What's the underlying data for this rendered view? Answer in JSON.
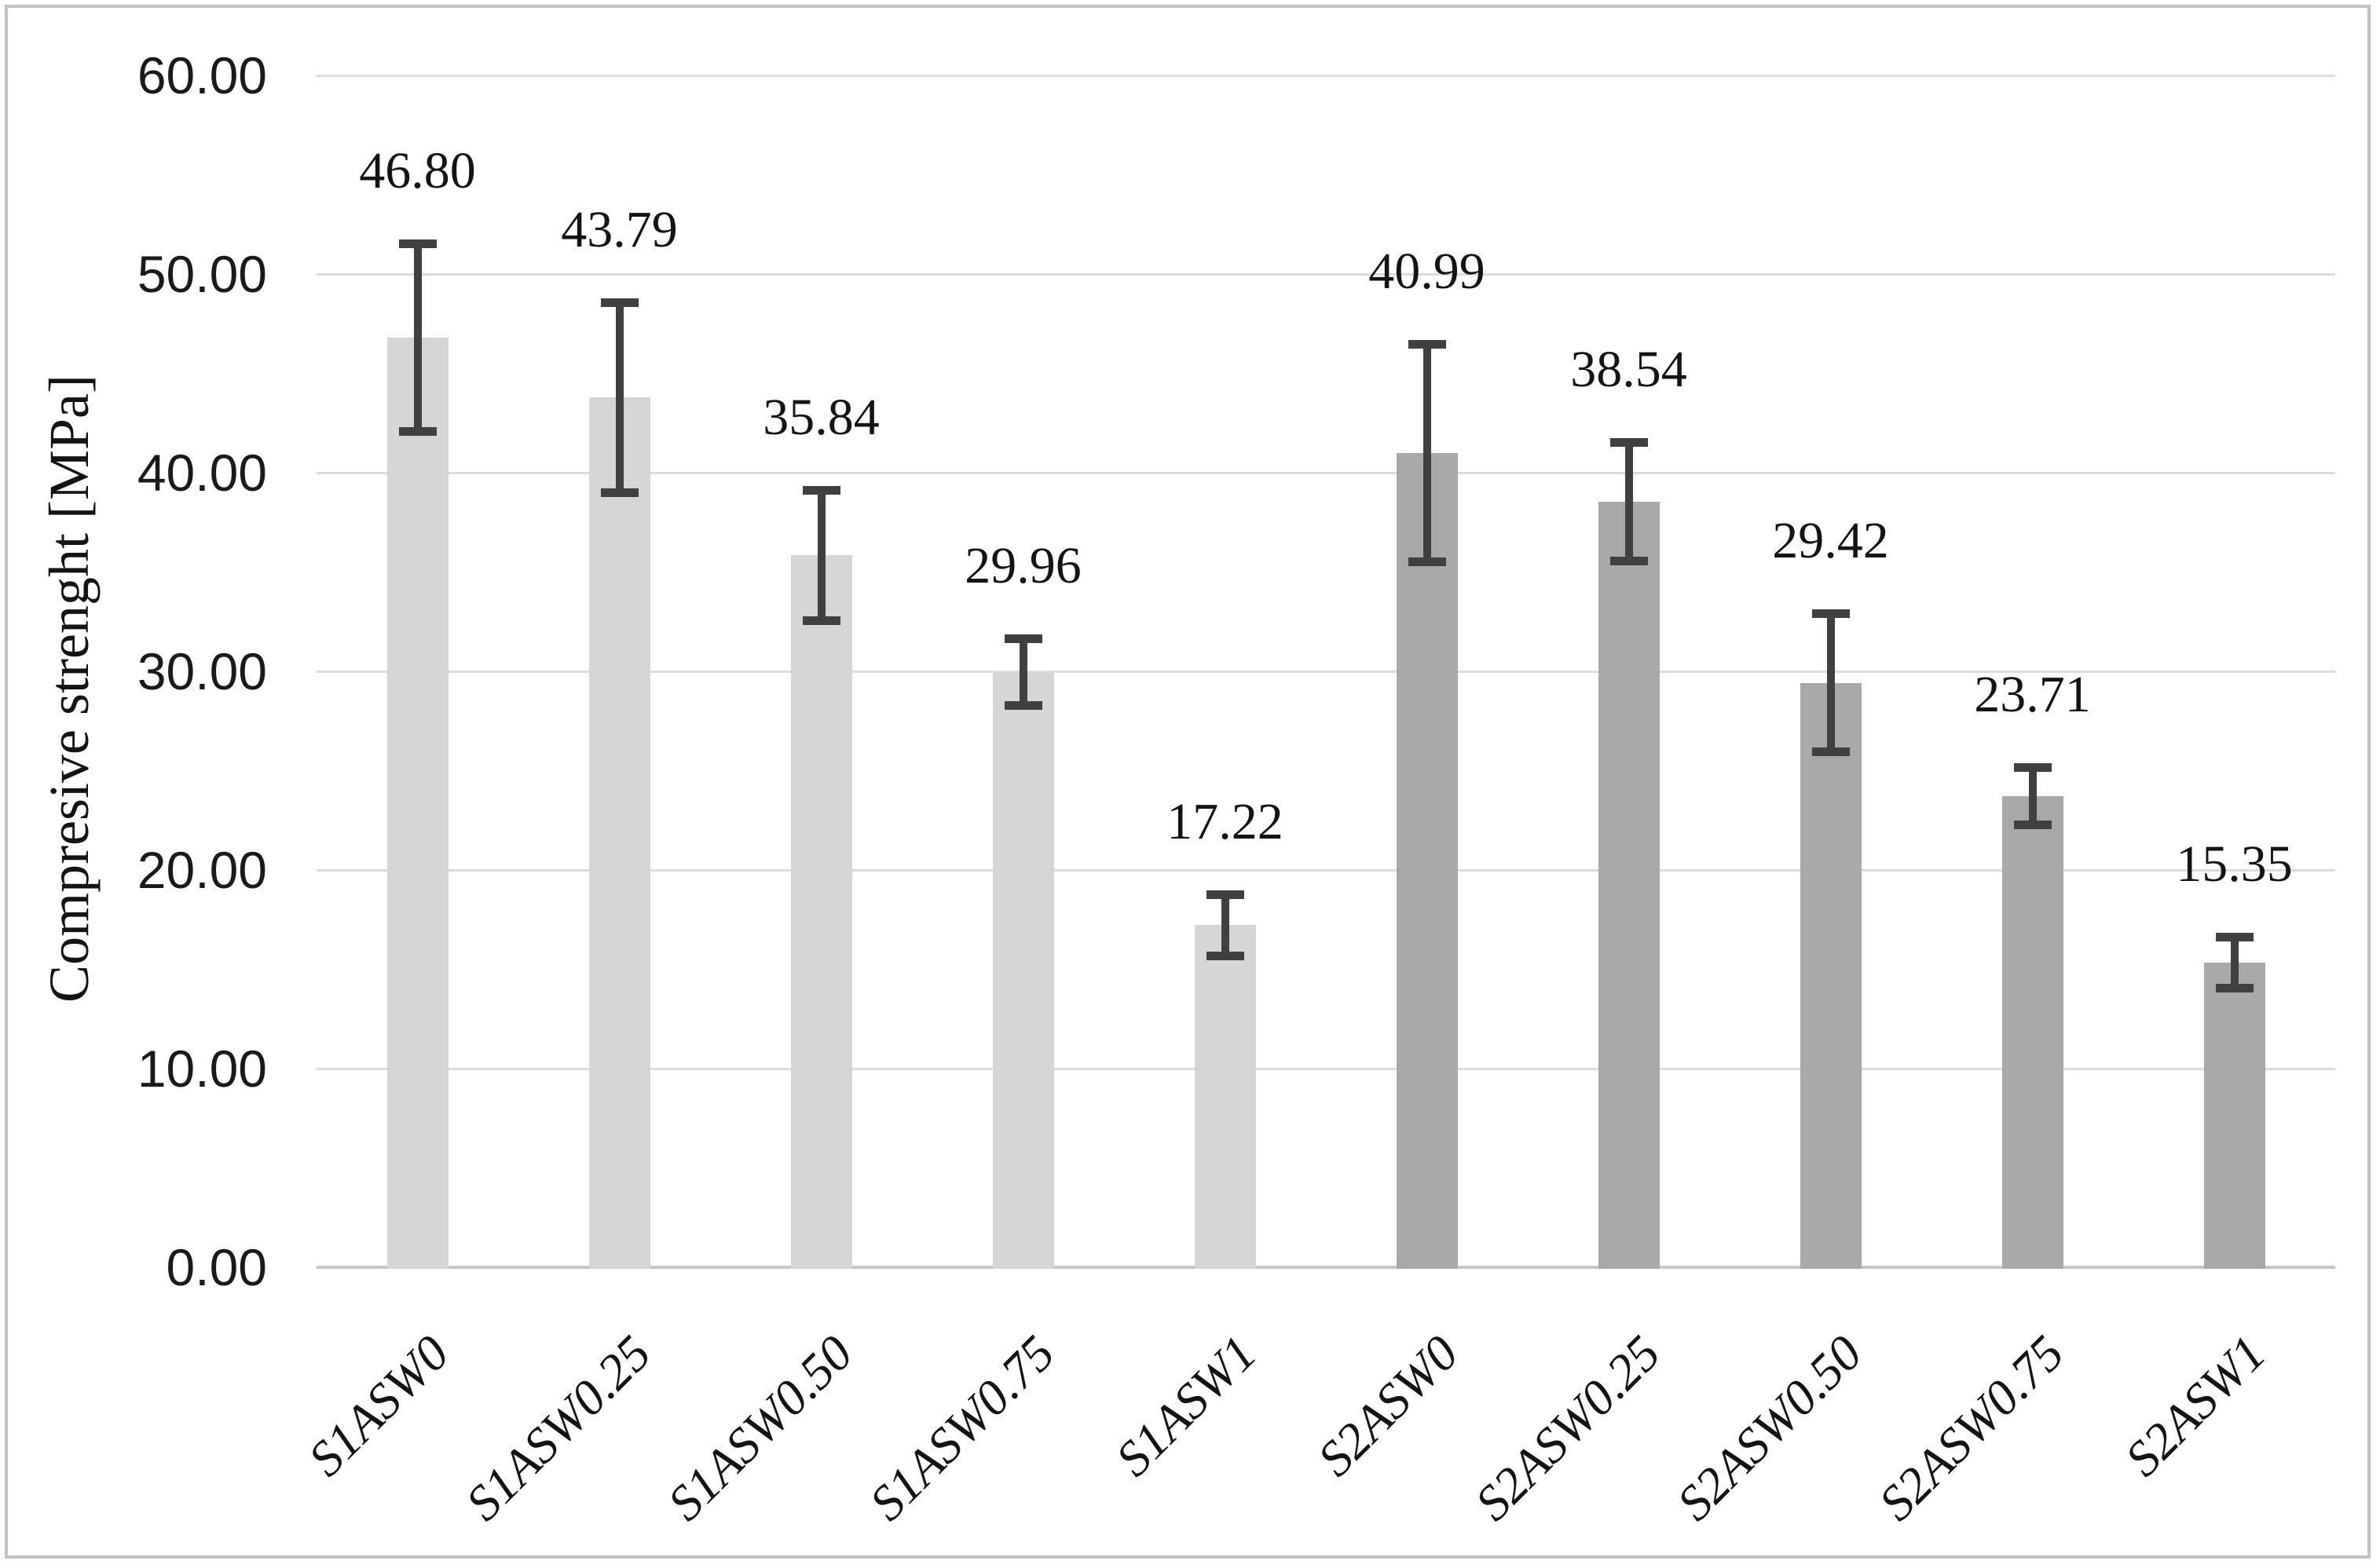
{
  "figure": {
    "background": "#ffffff",
    "border_color": "#c2c2c2"
  },
  "chart_data": {
    "type": "bar",
    "title": "",
    "xlabel": "",
    "ylabel": "Compresive strenght [MPa]",
    "ylim": [
      0,
      60
    ],
    "y_tick_step": 10,
    "y_ticks": [
      "0.00",
      "10.00",
      "20.00",
      "30.00",
      "40.00",
      "50.00",
      "60.00"
    ],
    "grid": true,
    "legend_position": "none",
    "categories": [
      "S1ASW0",
      "S1ASW0.25",
      "S1ASW0.50",
      "S1ASW0.75",
      "S1ASW1",
      "S2ASW0",
      "S2ASW0.25",
      "S2ASW0.50",
      "S2ASW0.75",
      "S2ASW1"
    ],
    "values": [
      46.8,
      43.79,
      35.84,
      29.96,
      17.22,
      40.99,
      38.54,
      29.42,
      23.71,
      15.35
    ],
    "data_labels": [
      "46.80",
      "43.79",
      "35.84",
      "29.96",
      "17.22",
      "40.99",
      "38.54",
      "29.42",
      "23.71",
      "15.35"
    ],
    "error_plus_minus": [
      4.75,
      4.8,
      3.3,
      1.7,
      1.55,
      5.5,
      3.0,
      3.5,
      1.45,
      1.3
    ],
    "groups": [
      "S1",
      "S1",
      "S1",
      "S1",
      "S1",
      "S2",
      "S2",
      "S2",
      "S2",
      "S2"
    ],
    "group_colors": {
      "S1": "#d5d5d5",
      "S2": "#a8a8a8"
    },
    "error_bar_color": "#404040",
    "gridline_color": "#dcdcdc",
    "axis_line_color": "#c6c6c6"
  }
}
